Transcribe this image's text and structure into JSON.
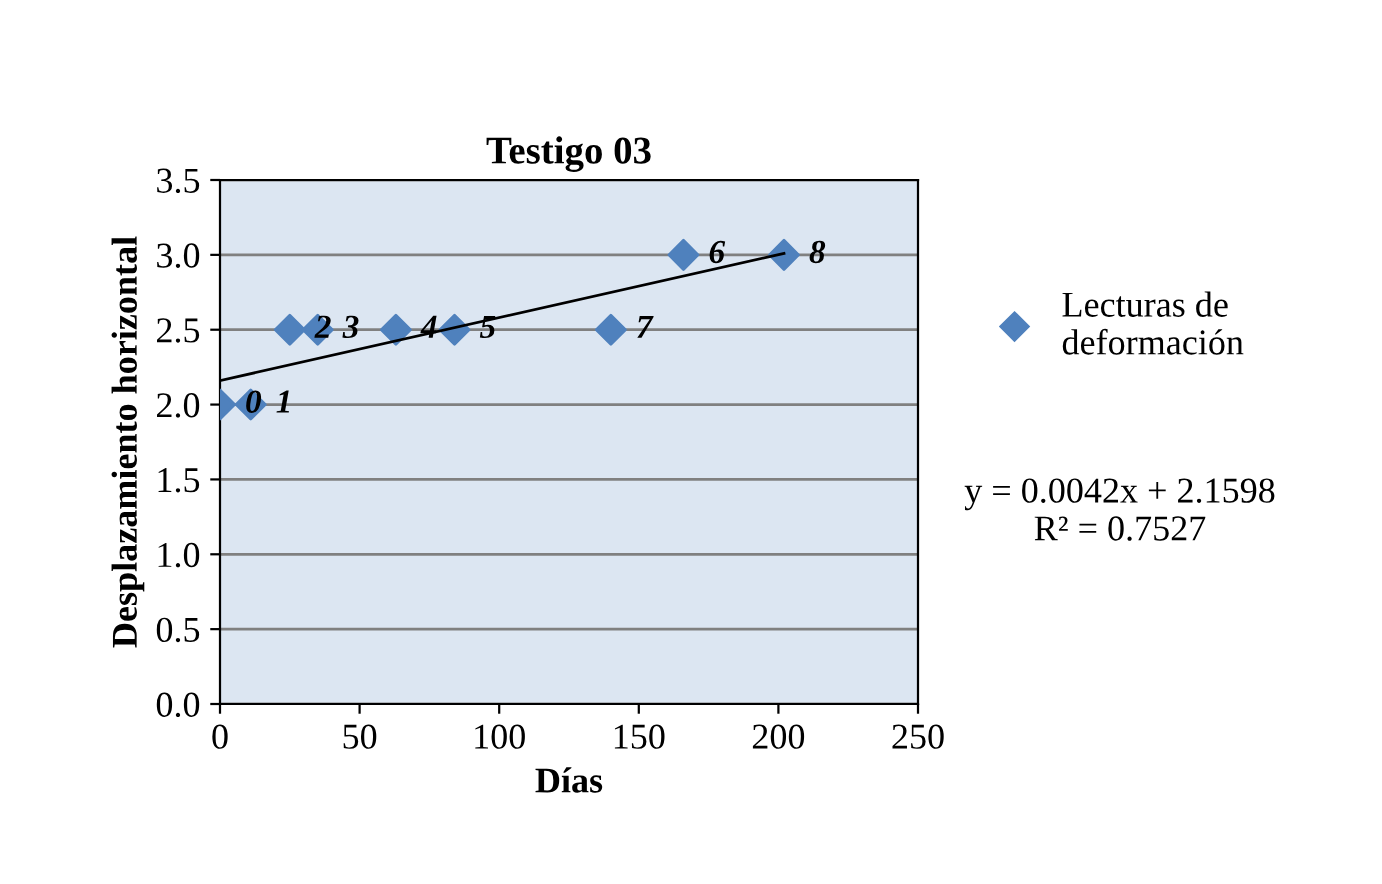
{
  "chart_data": {
    "type": "scatter",
    "title": "Testigo 03",
    "xlabel": "Días",
    "ylabel": "Desplazamiento horizontal",
    "xlim": [
      0,
      250
    ],
    "xticks": [
      0,
      50,
      100,
      150,
      200,
      250
    ],
    "ylim": [
      0,
      3.5
    ],
    "yticks": [
      {
        "value": 0,
        "label": "0.0"
      },
      {
        "value": 0.5,
        "label": "0.5"
      },
      {
        "value": 1,
        "label": "1.0"
      },
      {
        "value": 1.5,
        "label": "1.5"
      },
      {
        "value": 2,
        "label": "2.0"
      },
      {
        "value": 2.5,
        "label": "2.5"
      },
      {
        "value": 3,
        "label": "3.0"
      },
      {
        "value": 3.5,
        "label": "3.5"
      }
    ],
    "grid": "y",
    "legend": "right",
    "series": [
      {
        "name": "Lecturas de\ndeformación",
        "marker": "diamond",
        "color": "#4f81bd",
        "x": [
          0,
          11,
          25,
          35,
          63,
          84,
          140,
          166,
          202
        ],
        "values": [
          2.0,
          2.0,
          2.5,
          2.5,
          2.5,
          2.5,
          2.5,
          3.0,
          3.0
        ]
      },
      {
        "type": "line",
        "color": "#000000",
        "x": [
          0,
          202
        ],
        "values": [
          2.16,
          3.01
        ]
      }
    ],
    "annotations": [
      {
        "text": "0",
        "x": 0,
        "y": 2.0
      },
      {
        "text": "1",
        "x": 11,
        "y": 2.0
      },
      {
        "text": "2",
        "x": 25,
        "y": 2.5
      },
      {
        "text": "3",
        "x": 35,
        "y": 2.5
      },
      {
        "text": "4",
        "x": 63,
        "y": 2.5
      },
      {
        "text": "5",
        "x": 84,
        "y": 2.5
      },
      {
        "text": "7",
        "x": 140,
        "y": 2.5
      },
      {
        "text": "6",
        "x": 166,
        "y": 3.0
      },
      {
        "text": "8",
        "x": 202,
        "y": 3.0
      },
      "y = 0.0042x + 2.1598\nR² = 0.7527"
    ]
  }
}
